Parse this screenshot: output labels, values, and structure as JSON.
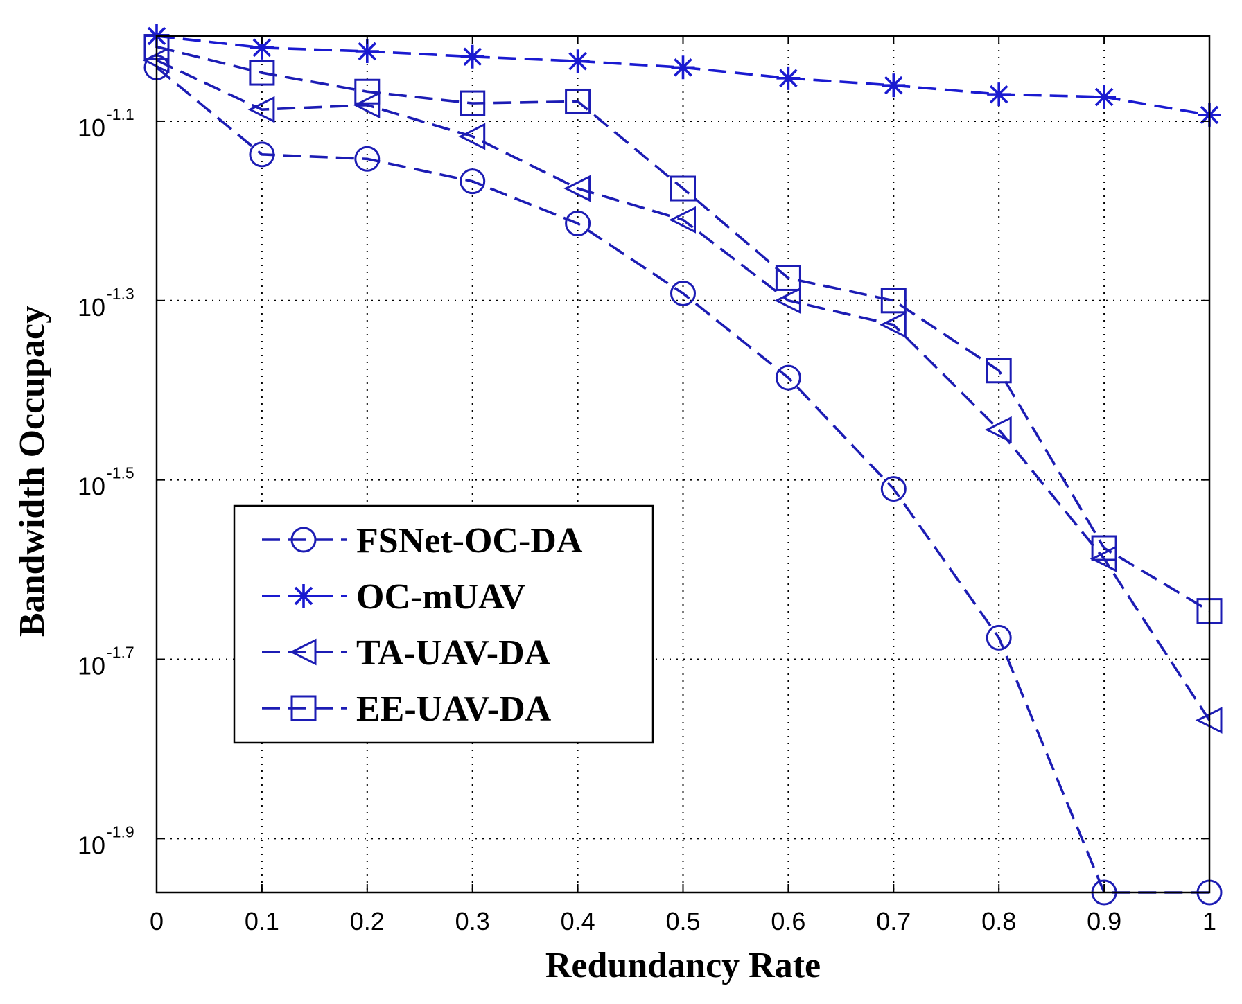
{
  "chart_data": {
    "type": "line",
    "title": "",
    "xlabel": "Redundancy Rate",
    "ylabel": "Bandwidth Occupacy",
    "yscale": "log",
    "xlim": [
      0,
      1
    ],
    "ylim_exponent": [
      -1.96,
      -1.005
    ],
    "x": [
      0,
      0.1,
      0.2,
      0.3,
      0.4,
      0.5,
      0.6,
      0.7,
      0.8,
      0.9,
      1
    ],
    "x_tick_labels": [
      "0",
      "0.1",
      "0.2",
      "0.3",
      "0.4",
      "0.5",
      "0.6",
      "0.7",
      "0.8",
      "0.9",
      "1"
    ],
    "y_ticks": [
      {
        "base": "10",
        "exponent": "-1.1",
        "value_exponent": -1.1
      },
      {
        "base": "10",
        "exponent": "-1.3",
        "value_exponent": -1.3
      },
      {
        "base": "10",
        "exponent": "-1.5",
        "value_exponent": -1.5
      },
      {
        "base": "10",
        "exponent": "-1.7",
        "value_exponent": -1.7
      },
      {
        "base": "10",
        "exponent": "-1.9",
        "value_exponent": -1.9
      }
    ],
    "grid": true,
    "legend_position": "lower-left",
    "series": [
      {
        "name": "FSNet-OC-DA",
        "marker": "circle",
        "color": "#1c1cb4",
        "log10_values": [
          -1.04,
          -1.137,
          -1.142,
          -1.167,
          -1.214,
          -1.292,
          -1.386,
          -1.51,
          -1.676,
          -1.96,
          -1.96
        ]
      },
      {
        "name": "OC-mUAV",
        "marker": "star",
        "color": "#1a1ad0",
        "log10_values": [
          -1.005,
          -1.018,
          -1.022,
          -1.028,
          -1.033,
          -1.04,
          -1.052,
          -1.06,
          -1.07,
          -1.073,
          -1.093
        ]
      },
      {
        "name": "TA-UAV-DA",
        "marker": "triangle-left",
        "color": "#1c1cb4",
        "log10_values": [
          -1.032,
          -1.087,
          -1.082,
          -1.117,
          -1.175,
          -1.21,
          -1.3,
          -1.327,
          -1.444,
          -1.588,
          -1.768
        ]
      },
      {
        "name": "EE-UAV-DA",
        "marker": "square",
        "color": "#1c1cb4",
        "log10_values": [
          -1.017,
          -1.046,
          -1.067,
          -1.08,
          -1.078,
          -1.175,
          -1.275,
          -1.3,
          -1.378,
          -1.576,
          -1.646
        ]
      }
    ]
  }
}
